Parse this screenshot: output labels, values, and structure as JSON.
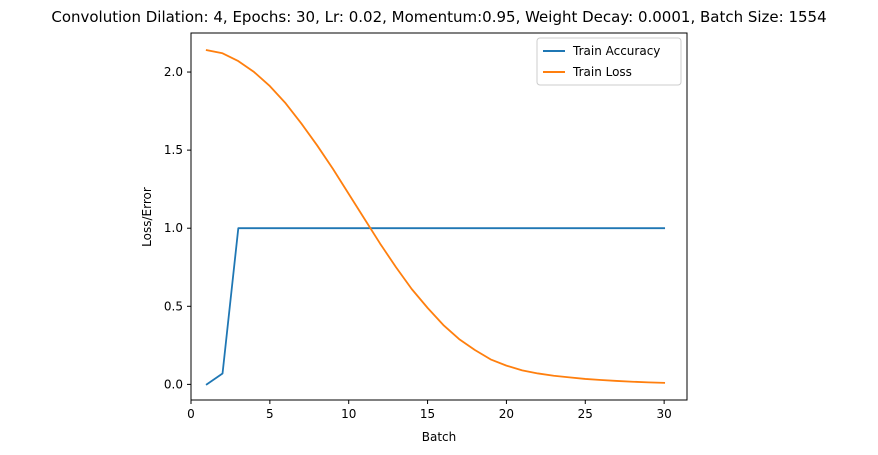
{
  "chart_data": {
    "type": "line",
    "title": "Convolution Dilation: 4, Epochs: 30, Lr: 0.02, Momentum:0.95, Weight Decay: 0.0001, Batch Size: 1554",
    "xlabel": "Batch",
    "ylabel": "Loss/Error",
    "xlim": [
      0,
      31.45
    ],
    "ylim": [
      -0.1,
      2.25
    ],
    "xticks": [
      0,
      5,
      10,
      15,
      20,
      25,
      30
    ],
    "yticks": [
      0.0,
      0.5,
      1.0,
      1.5,
      2.0
    ],
    "ytick_labels": [
      "0.0",
      "0.5",
      "1.0",
      "1.5",
      "2.0"
    ],
    "grid": false,
    "legend_position": "upper-right",
    "x": [
      1,
      2,
      3,
      4,
      5,
      6,
      7,
      8,
      9,
      10,
      11,
      12,
      13,
      14,
      15,
      16,
      17,
      18,
      19,
      20,
      21,
      22,
      23,
      24,
      25,
      26,
      27,
      28,
      29,
      30
    ],
    "series": [
      {
        "name": "Train Accuracy",
        "color": "#1f77b4",
        "values": [
          0.0,
          0.07,
          1.0,
          1.0,
          1.0,
          1.0,
          1.0,
          1.0,
          1.0,
          1.0,
          1.0,
          1.0,
          1.0,
          1.0,
          1.0,
          1.0,
          1.0,
          1.0,
          1.0,
          1.0,
          1.0,
          1.0,
          1.0,
          1.0,
          1.0,
          1.0,
          1.0,
          1.0,
          1.0,
          1.0
        ]
      },
      {
        "name": "Train Loss",
        "color": "#ff7f0e",
        "values": [
          2.14,
          2.12,
          2.07,
          2.0,
          1.91,
          1.8,
          1.67,
          1.53,
          1.38,
          1.22,
          1.06,
          0.9,
          0.75,
          0.61,
          0.49,
          0.38,
          0.29,
          0.22,
          0.16,
          0.12,
          0.09,
          0.07,
          0.055,
          0.045,
          0.035,
          0.028,
          0.022,
          0.017,
          0.013,
          0.01
        ]
      }
    ]
  }
}
